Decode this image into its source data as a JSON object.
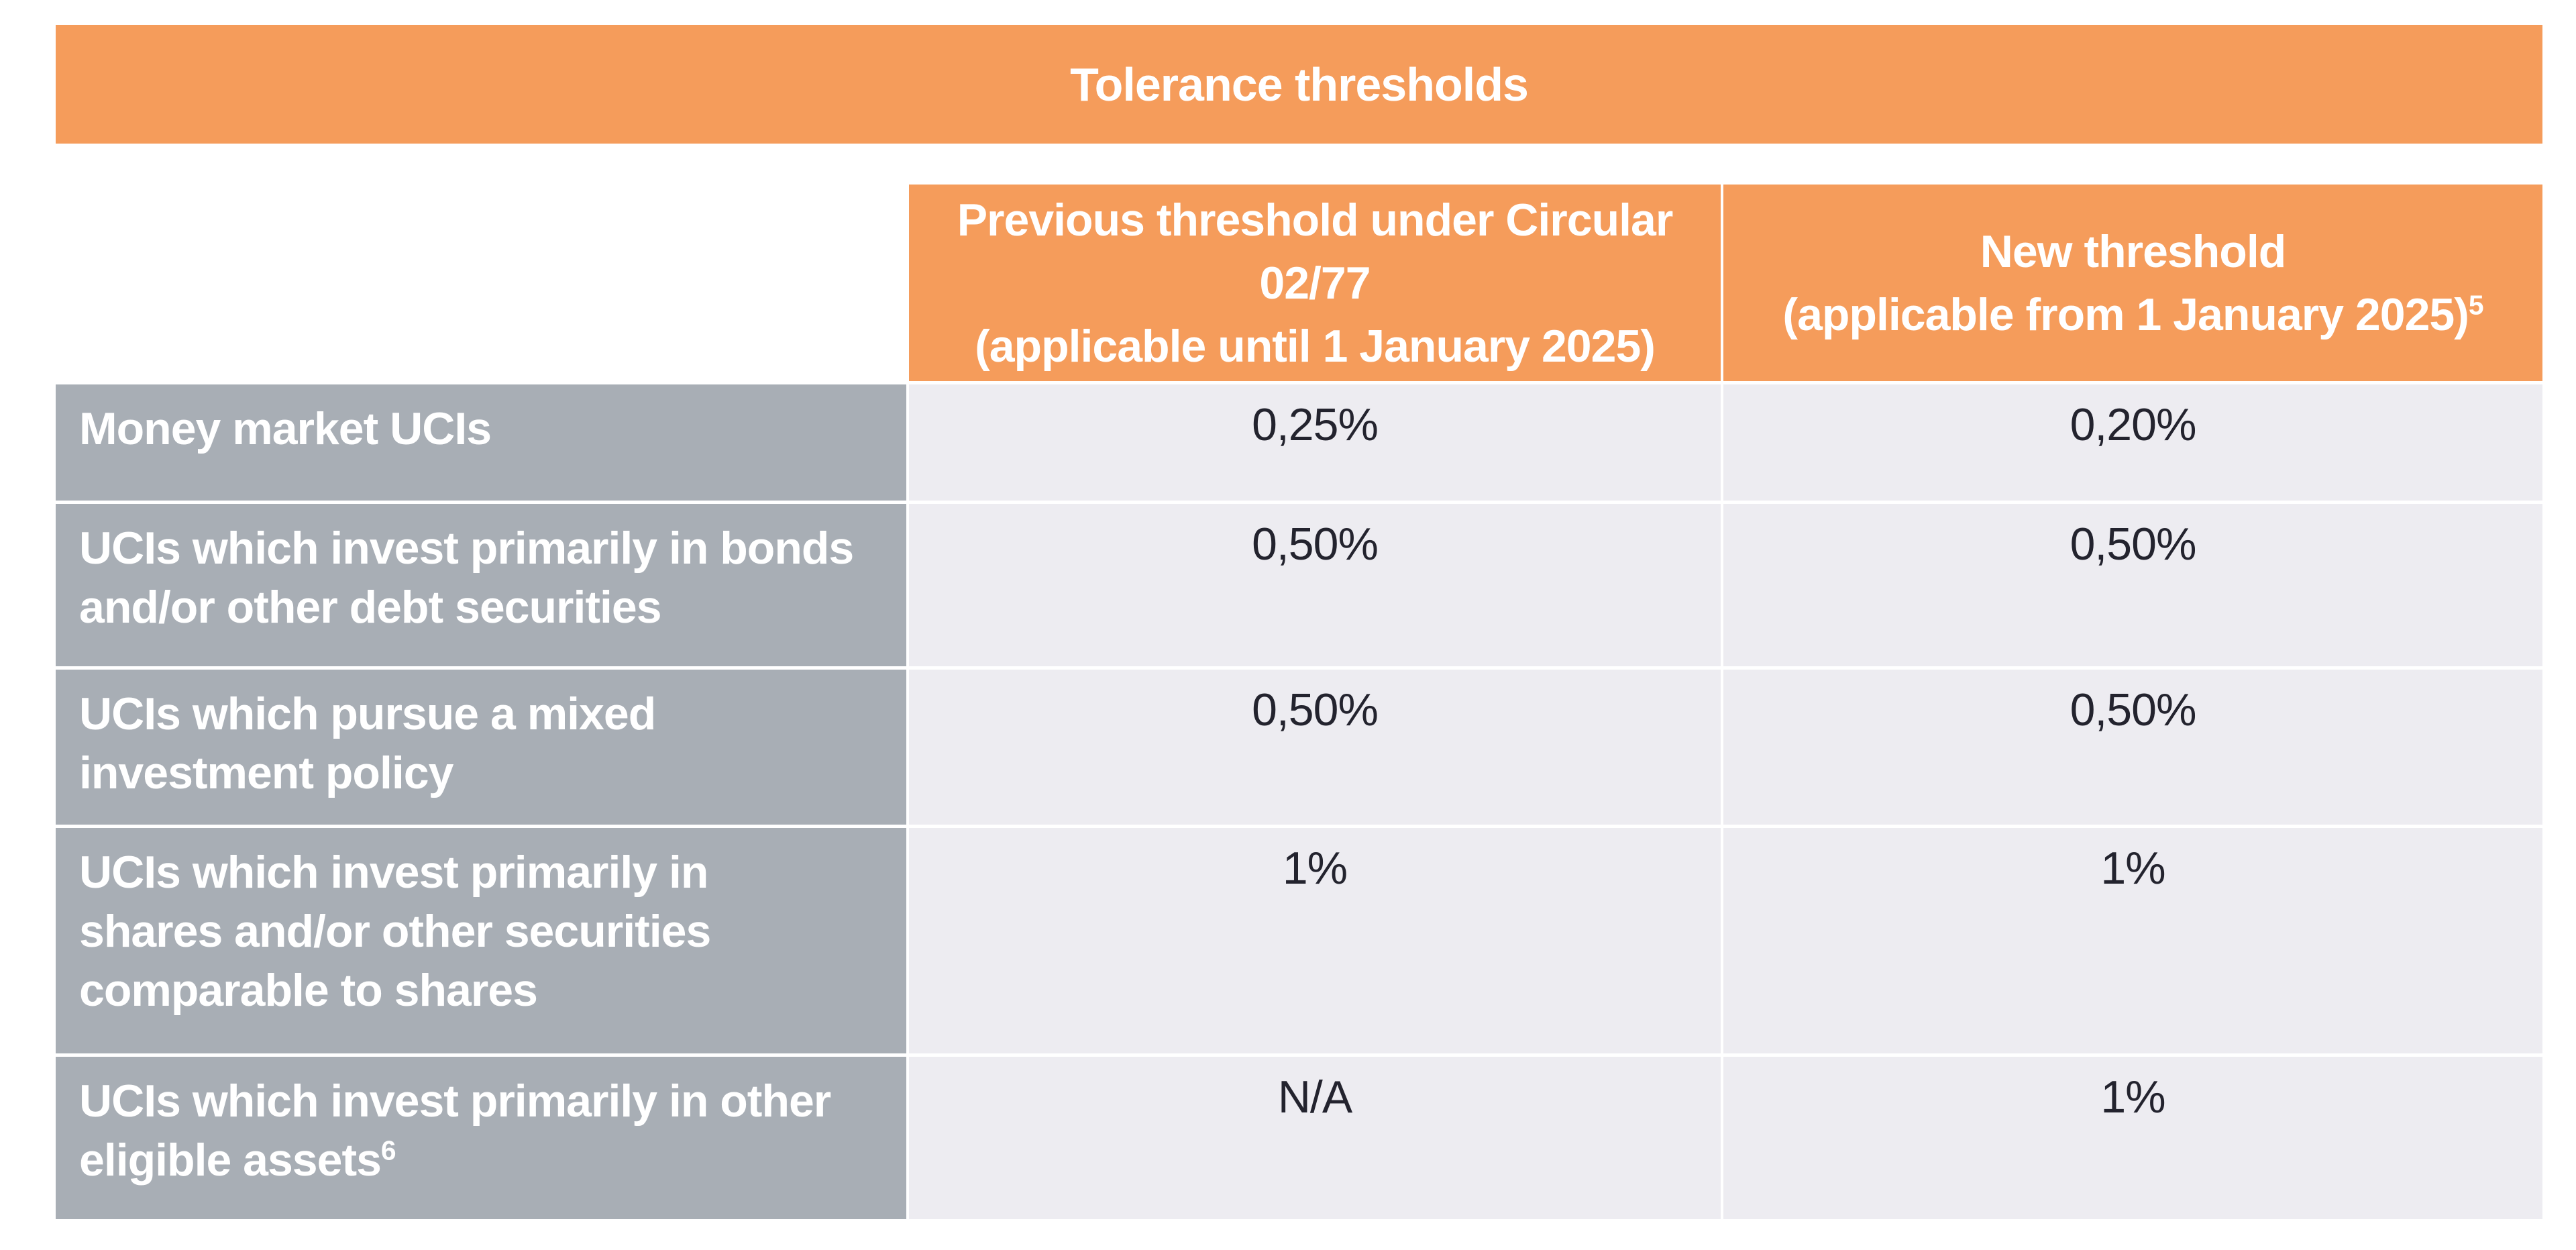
{
  "title": "Tolerance thresholds",
  "colors": {
    "banner_orange": "#F59C5B",
    "label_gray": "#A8AEB5",
    "value_lavender": "#EDECF1",
    "value_text_dark": "#23232E",
    "text_white": "#FFFFFF"
  },
  "table": {
    "columns": [
      {
        "label_lines": [
          "Previous threshold under Circular",
          "02/77",
          "(applicable until 1 January 2025)"
        ],
        "sup": ""
      },
      {
        "label_lines": [
          "New threshold",
          "(applicable from 1 January 2025)"
        ],
        "sup": "5"
      }
    ],
    "rows": [
      {
        "label_lines": [
          "Money market UCIs"
        ],
        "sup": "",
        "previous": "0,25%",
        "new": "0,20%"
      },
      {
        "label_lines": [
          "UCIs which invest primarily in bonds",
          "and/or other debt securities"
        ],
        "sup": "",
        "previous": "0,50%",
        "new": "0,50%"
      },
      {
        "label_lines": [
          "UCIs which pursue a mixed",
          "investment policy"
        ],
        "sup": "",
        "previous": "0,50%",
        "new": "0,50%"
      },
      {
        "label_lines": [
          "UCIs which invest primarily in",
          "shares and/or other securities",
          "comparable to shares"
        ],
        "sup": "",
        "previous": "1%",
        "new": "1%"
      },
      {
        "label_lines": [
          "UCIs which invest primarily in other",
          "eligible assets"
        ],
        "sup": "6",
        "previous": "N/A",
        "new": "1%"
      }
    ]
  }
}
